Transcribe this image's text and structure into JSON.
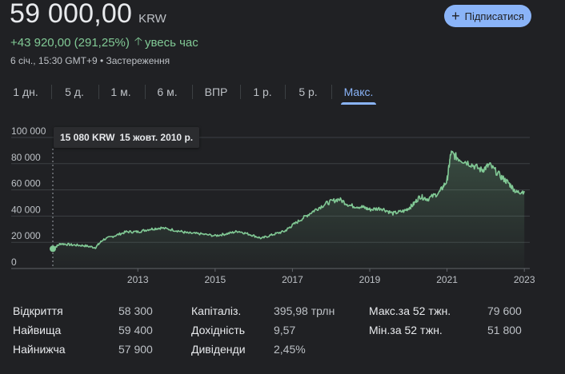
{
  "quote": {
    "price": "59 000,00",
    "currency": "KRW",
    "change": "+43 920,00 (291,25%)",
    "change_period": "увесь час",
    "meta": "6 січ., 15:30 GMT+9 • Застереження"
  },
  "follow_button": {
    "label": "Підписатися"
  },
  "tabs": [
    {
      "label": "1 дн."
    },
    {
      "label": "5 д."
    },
    {
      "label": "1 м."
    },
    {
      "label": "6 м."
    },
    {
      "label": "ВПР"
    },
    {
      "label": "1 р."
    },
    {
      "label": "5 р."
    },
    {
      "label": "Макс."
    }
  ],
  "active_tab": "Макс.",
  "tooltip": {
    "value": "15 080 KRW",
    "date": "15 жовт. 2010 р."
  },
  "chart_data": {
    "type": "area",
    "title": "",
    "xlabel": "",
    "ylabel": "",
    "x_ticks": [
      "2013",
      "2015",
      "2017",
      "2019",
      "2021",
      "2023"
    ],
    "y_ticks": [
      "0",
      "20 000",
      "40 000",
      "60 000",
      "80 000",
      "100 000"
    ],
    "xlim": [
      2010.8,
      2023.1
    ],
    "ylim": [
      0,
      100000
    ],
    "grid": true,
    "colors": {
      "line": "#81c995",
      "point": "#81c995"
    },
    "highlight_point": {
      "x": 2010.8,
      "y": 15080
    },
    "series": [
      {
        "x": [
          2010.8,
          2011.0,
          2011.3,
          2011.6,
          2011.9,
          2012.1,
          2012.4,
          2012.7,
          2013.0,
          2013.3,
          2013.6,
          2014.0,
          2014.3,
          2014.6,
          2015.0,
          2015.3,
          2015.6,
          2015.9,
          2016.2,
          2016.5,
          2016.8,
          2017.0,
          2017.3,
          2017.6,
          2017.9,
          2018.2,
          2018.5,
          2018.8,
          2019.0,
          2019.3,
          2019.6,
          2019.9,
          2020.1,
          2020.3,
          2020.5,
          2020.8,
          2021.0,
          2021.1,
          2021.3,
          2021.6,
          2021.9,
          2022.1,
          2022.4,
          2022.6,
          2022.8,
          2023.0
        ],
        "y": [
          15080,
          19000,
          18000,
          17500,
          16000,
          22000,
          25000,
          28000,
          28000,
          30000,
          31000,
          29000,
          27000,
          26500,
          25000,
          26500,
          28500,
          26000,
          23000,
          26000,
          28500,
          33000,
          39000,
          45000,
          50000,
          53000,
          48000,
          47000,
          45000,
          46000,
          42000,
          44000,
          48000,
          55000,
          53000,
          58000,
          67000,
          88000,
          84000,
          80000,
          75000,
          79000,
          70000,
          65000,
          58000,
          59000
        ]
      }
    ]
  },
  "stats": [
    {
      "label": "Відкриття",
      "value": "58 300"
    },
    {
      "label": "Найвища",
      "value": "59 400"
    },
    {
      "label": "Найнижча",
      "value": "57 900"
    },
    {
      "label": "Капіталіз.",
      "value": "395,98 трлн"
    },
    {
      "label": "Дохідність",
      "value": "9,57"
    },
    {
      "label": "Дивіденди",
      "value": "2,45%"
    },
    {
      "label": "Макс.за 52 тжн.",
      "value": "79 600"
    },
    {
      "label": "Мін.за 52 тжн.",
      "value": "51 800"
    }
  ]
}
